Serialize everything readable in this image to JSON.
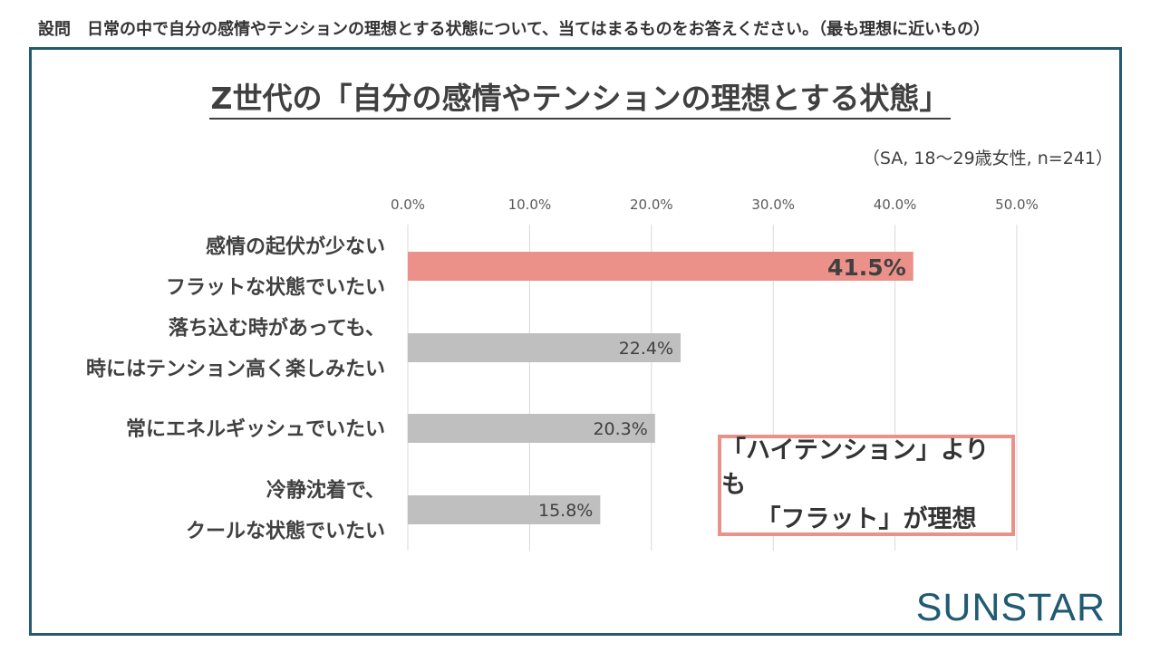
{
  "question": "設問　日常の中で自分の感情やテンションの理想とする状態について、当てはまるものをお答えください。（最も理想に近いもの）",
  "sample_note": "（SA, 18～29歳女性, n=241）",
  "callout": {
    "line1": "「ハイテンション」よりも",
    "line2": "「フラット」が理想"
  },
  "logo": "SUNSTAR",
  "colors": {
    "frame": "#215a72",
    "highlight_bar": "#ec908a",
    "bar": "#bfbfbf",
    "callout_border": "#e8928a"
  },
  "chart_data": {
    "type": "bar",
    "orientation": "horizontal",
    "title": "Z世代の「自分の感情やテンションの理想とする状態」",
    "categories": [
      [
        "感情の起伏が少ない",
        "フラットな状態でいたい"
      ],
      [
        "落ち込む時があっても、",
        "時にはテンション高く楽しみたい"
      ],
      [
        "常にエネルギッシュでいたい"
      ],
      [
        "冷静沈着で、",
        "クールな状態でいたい"
      ]
    ],
    "values": [
      41.5,
      22.4,
      20.3,
      15.8
    ],
    "value_labels": [
      "41.5%",
      "22.4%",
      "20.3%",
      "15.8%"
    ],
    "highlight_index": 0,
    "xlim": [
      0,
      50
    ],
    "ticks": [
      "0.0%",
      "10.0%",
      "20.0%",
      "30.0%",
      "40.0%",
      "50.0%"
    ],
    "grid": true
  }
}
